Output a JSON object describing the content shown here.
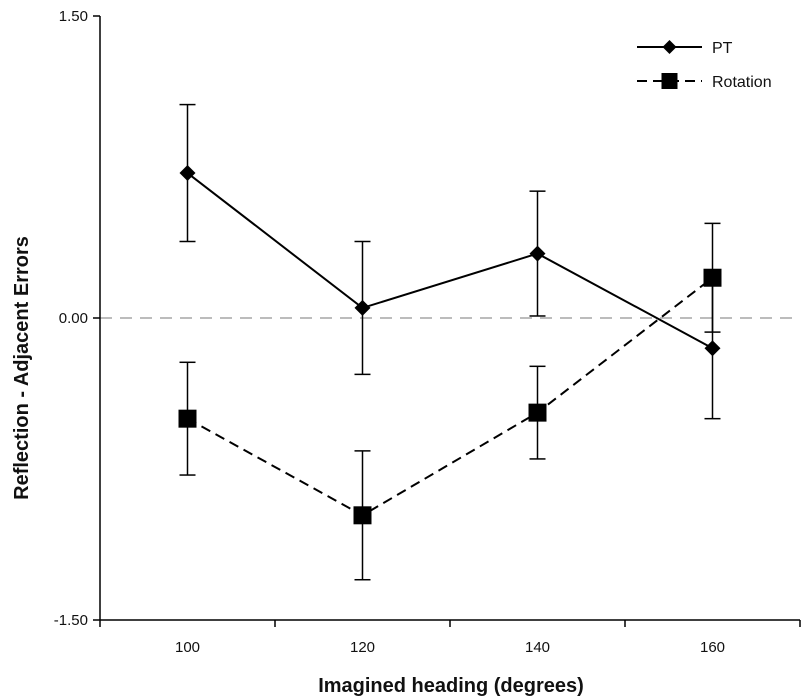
{
  "chart_data": {
    "type": "line",
    "title": "",
    "xlabel": "Imagined heading (degrees)",
    "ylabel": "Reflection - Adjacent Errors",
    "x": [
      100,
      120,
      140,
      160
    ],
    "x_tick_labels": [
      "100",
      "120",
      "140",
      "160"
    ],
    "xlim": [
      90,
      170
    ],
    "ylim": [
      -1.5,
      1.5
    ],
    "y_ticks": [
      -1.5,
      0,
      1.5
    ],
    "y_tick_labels": [
      "-1.50",
      "0.00",
      "1.50"
    ],
    "reference_line": {
      "y": 0,
      "style": "dashed",
      "color": "#a6a6a6"
    },
    "grid": false,
    "legend_position": "top-right",
    "series": [
      {
        "name": "PT",
        "marker": "diamond",
        "line_style": "solid",
        "color": "#000000",
        "values": [
          0.72,
          0.05,
          0.32,
          -0.15
        ],
        "error": [
          0.34,
          0.33,
          0.31,
          0.35
        ]
      },
      {
        "name": "Rotation",
        "marker": "square",
        "line_style": "dashed",
        "color": "#000000",
        "values": [
          -0.5,
          -0.98,
          -0.47,
          0.2
        ],
        "error": [
          0.28,
          0.32,
          0.23,
          0.27
        ]
      }
    ]
  }
}
